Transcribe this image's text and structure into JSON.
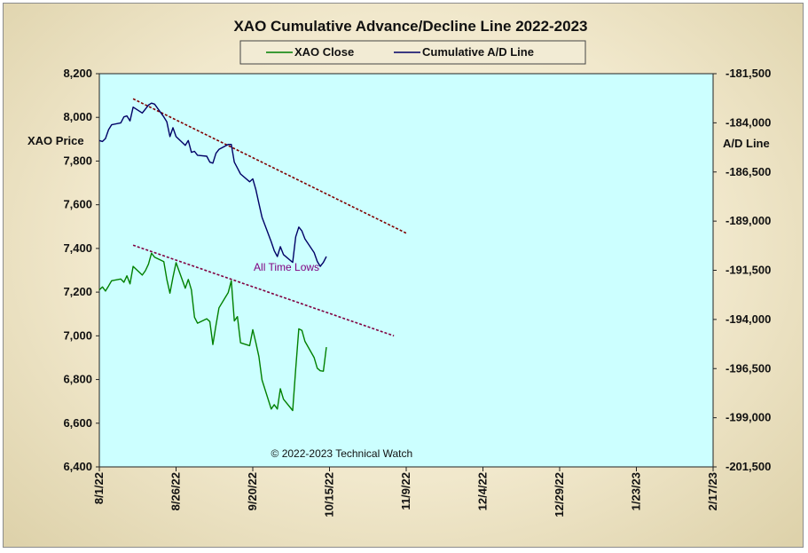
{
  "chart_data": {
    "type": "line",
    "title": "XAO Cumulative Advance/Decline Line 2022-2023",
    "ylabel_left": "XAO Price",
    "ylabel_right": "A/D Line",
    "ylim_left": [
      6400,
      8200
    ],
    "ylim_right": [
      -201500,
      -181500
    ],
    "yticks_left": [
      "8,200",
      "8,000",
      "7,800",
      "7,600",
      "7,400",
      "7,200",
      "7,000",
      "6,800",
      "6,600",
      "6,400"
    ],
    "yticks_right": [
      "-181,500",
      "-184,000",
      "-186,500",
      "-189,000",
      "-191,500",
      "-194,000",
      "-196,500",
      "-199,000",
      "-201,500"
    ],
    "xticks": [
      "8/1/22",
      "8/26/22",
      "9/20/22",
      "10/15/22",
      "11/9/22",
      "12/4/22",
      "12/29/22",
      "1/23/23",
      "2/17/23"
    ],
    "xlim": [
      "2022-08-01",
      "2023-02-17"
    ],
    "plot_background": "#ccffff",
    "grid": false,
    "legend_position": "top-center",
    "series": [
      {
        "name": "XAO Close",
        "axis": "left",
        "color": "#008000",
        "points": [
          [
            "2022-08-01",
            7210
          ],
          [
            "2022-08-02",
            7224
          ],
          [
            "2022-08-03",
            7205
          ],
          [
            "2022-08-04",
            7228
          ],
          [
            "2022-08-05",
            7252
          ],
          [
            "2022-08-08",
            7260
          ],
          [
            "2022-08-09",
            7245
          ],
          [
            "2022-08-10",
            7275
          ],
          [
            "2022-08-11",
            7238
          ],
          [
            "2022-08-12",
            7318
          ],
          [
            "2022-08-15",
            7278
          ],
          [
            "2022-08-16",
            7298
          ],
          [
            "2022-08-17",
            7328
          ],
          [
            "2022-08-18",
            7378
          ],
          [
            "2022-08-19",
            7360
          ],
          [
            "2022-08-22",
            7340
          ],
          [
            "2022-08-23",
            7258
          ],
          [
            "2022-08-24",
            7195
          ],
          [
            "2022-08-25",
            7268
          ],
          [
            "2022-08-26",
            7335
          ],
          [
            "2022-08-29",
            7218
          ],
          [
            "2022-08-30",
            7258
          ],
          [
            "2022-08-31",
            7210
          ],
          [
            "2022-09-01",
            7085
          ],
          [
            "2022-09-02",
            7058
          ],
          [
            "2022-09-05",
            7078
          ],
          [
            "2022-09-06",
            7065
          ],
          [
            "2022-09-07",
            6960
          ],
          [
            "2022-09-08",
            7048
          ],
          [
            "2022-09-09",
            7128
          ],
          [
            "2022-09-12",
            7198
          ],
          [
            "2022-09-13",
            7252
          ],
          [
            "2022-09-14",
            7068
          ],
          [
            "2022-09-15",
            7088
          ],
          [
            "2022-09-16",
            6968
          ],
          [
            "2022-09-19",
            6955
          ],
          [
            "2022-09-20",
            7028
          ],
          [
            "2022-09-21",
            6968
          ],
          [
            "2022-09-22",
            6905
          ],
          [
            "2022-09-23",
            6798
          ],
          [
            "2022-09-26",
            6665
          ],
          [
            "2022-09-27",
            6685
          ],
          [
            "2022-09-28",
            6665
          ],
          [
            "2022-09-29",
            6758
          ],
          [
            "2022-09-30",
            6710
          ],
          [
            "2022-10-03",
            6658
          ],
          [
            "2022-10-04",
            6848
          ],
          [
            "2022-10-05",
            7032
          ],
          [
            "2022-10-06",
            7025
          ],
          [
            "2022-10-07",
            6975
          ],
          [
            "2022-10-10",
            6900
          ],
          [
            "2022-10-11",
            6852
          ],
          [
            "2022-10-12",
            6840
          ],
          [
            "2022-10-13",
            6838
          ],
          [
            "2022-10-14",
            6948
          ]
        ]
      },
      {
        "name": "Cumulative A/D Line",
        "axis": "right",
        "color": "#000066",
        "points": [
          [
            "2022-08-01",
            -184900
          ],
          [
            "2022-08-02",
            -184950
          ],
          [
            "2022-08-03",
            -184800
          ],
          [
            "2022-08-04",
            -184350
          ],
          [
            "2022-08-05",
            -184100
          ],
          [
            "2022-08-08",
            -184000
          ],
          [
            "2022-08-09",
            -183700
          ],
          [
            "2022-08-10",
            -183650
          ],
          [
            "2022-08-11",
            -183900
          ],
          [
            "2022-08-12",
            -183200
          ],
          [
            "2022-08-15",
            -183500
          ],
          [
            "2022-08-16",
            -183300
          ],
          [
            "2022-08-17",
            -183100
          ],
          [
            "2022-08-18",
            -183000
          ],
          [
            "2022-08-19",
            -183050
          ],
          [
            "2022-08-22",
            -183700
          ],
          [
            "2022-08-23",
            -183950
          ],
          [
            "2022-08-24",
            -184700
          ],
          [
            "2022-08-25",
            -184250
          ],
          [
            "2022-08-26",
            -184700
          ],
          [
            "2022-08-29",
            -185150
          ],
          [
            "2022-08-30",
            -184900
          ],
          [
            "2022-08-31",
            -185500
          ],
          [
            "2022-09-01",
            -185450
          ],
          [
            "2022-09-02",
            -185650
          ],
          [
            "2022-09-05",
            -185700
          ],
          [
            "2022-09-06",
            -186000
          ],
          [
            "2022-09-07",
            -186050
          ],
          [
            "2022-09-08",
            -185550
          ],
          [
            "2022-09-09",
            -185350
          ],
          [
            "2022-09-12",
            -185100
          ],
          [
            "2022-09-13",
            -185100
          ],
          [
            "2022-09-14",
            -186000
          ],
          [
            "2022-09-15",
            -186300
          ],
          [
            "2022-09-16",
            -186600
          ],
          [
            "2022-09-19",
            -187000
          ],
          [
            "2022-09-20",
            -186850
          ],
          [
            "2022-09-21",
            -187400
          ],
          [
            "2022-09-22",
            -188100
          ],
          [
            "2022-09-23",
            -188800
          ],
          [
            "2022-09-26",
            -190050
          ],
          [
            "2022-09-27",
            -190500
          ],
          [
            "2022-09-28",
            -190800
          ],
          [
            "2022-09-29",
            -190300
          ],
          [
            "2022-09-30",
            -190700
          ],
          [
            "2022-10-03",
            -191100
          ],
          [
            "2022-10-04",
            -189800
          ],
          [
            "2022-10-05",
            -189300
          ],
          [
            "2022-10-06",
            -189500
          ],
          [
            "2022-10-07",
            -189900
          ],
          [
            "2022-10-10",
            -190600
          ],
          [
            "2022-10-11",
            -191050
          ],
          [
            "2022-10-12",
            -191300
          ],
          [
            "2022-10-13",
            -191100
          ],
          [
            "2022-10-14",
            -190800
          ]
        ]
      }
    ],
    "trendlines": [
      {
        "axis": "left",
        "color": "#800000",
        "from": [
          "2022-08-12",
          8085
        ],
        "to": [
          "2022-11-09",
          7470
        ]
      },
      {
        "axis": "left",
        "color": "#800040",
        "from": [
          "2022-08-12",
          7415
        ],
        "to": [
          "2022-11-05",
          7000
        ]
      }
    ],
    "annotations": [
      {
        "text": "All Time Lows",
        "at": [
          "2022-10-01",
          7298
        ],
        "color": "#800080"
      },
      {
        "text": "© 2022-2023  Technical Watch",
        "at": [
          "2022-10-19",
          6445
        ],
        "color": "#111111"
      }
    ]
  }
}
